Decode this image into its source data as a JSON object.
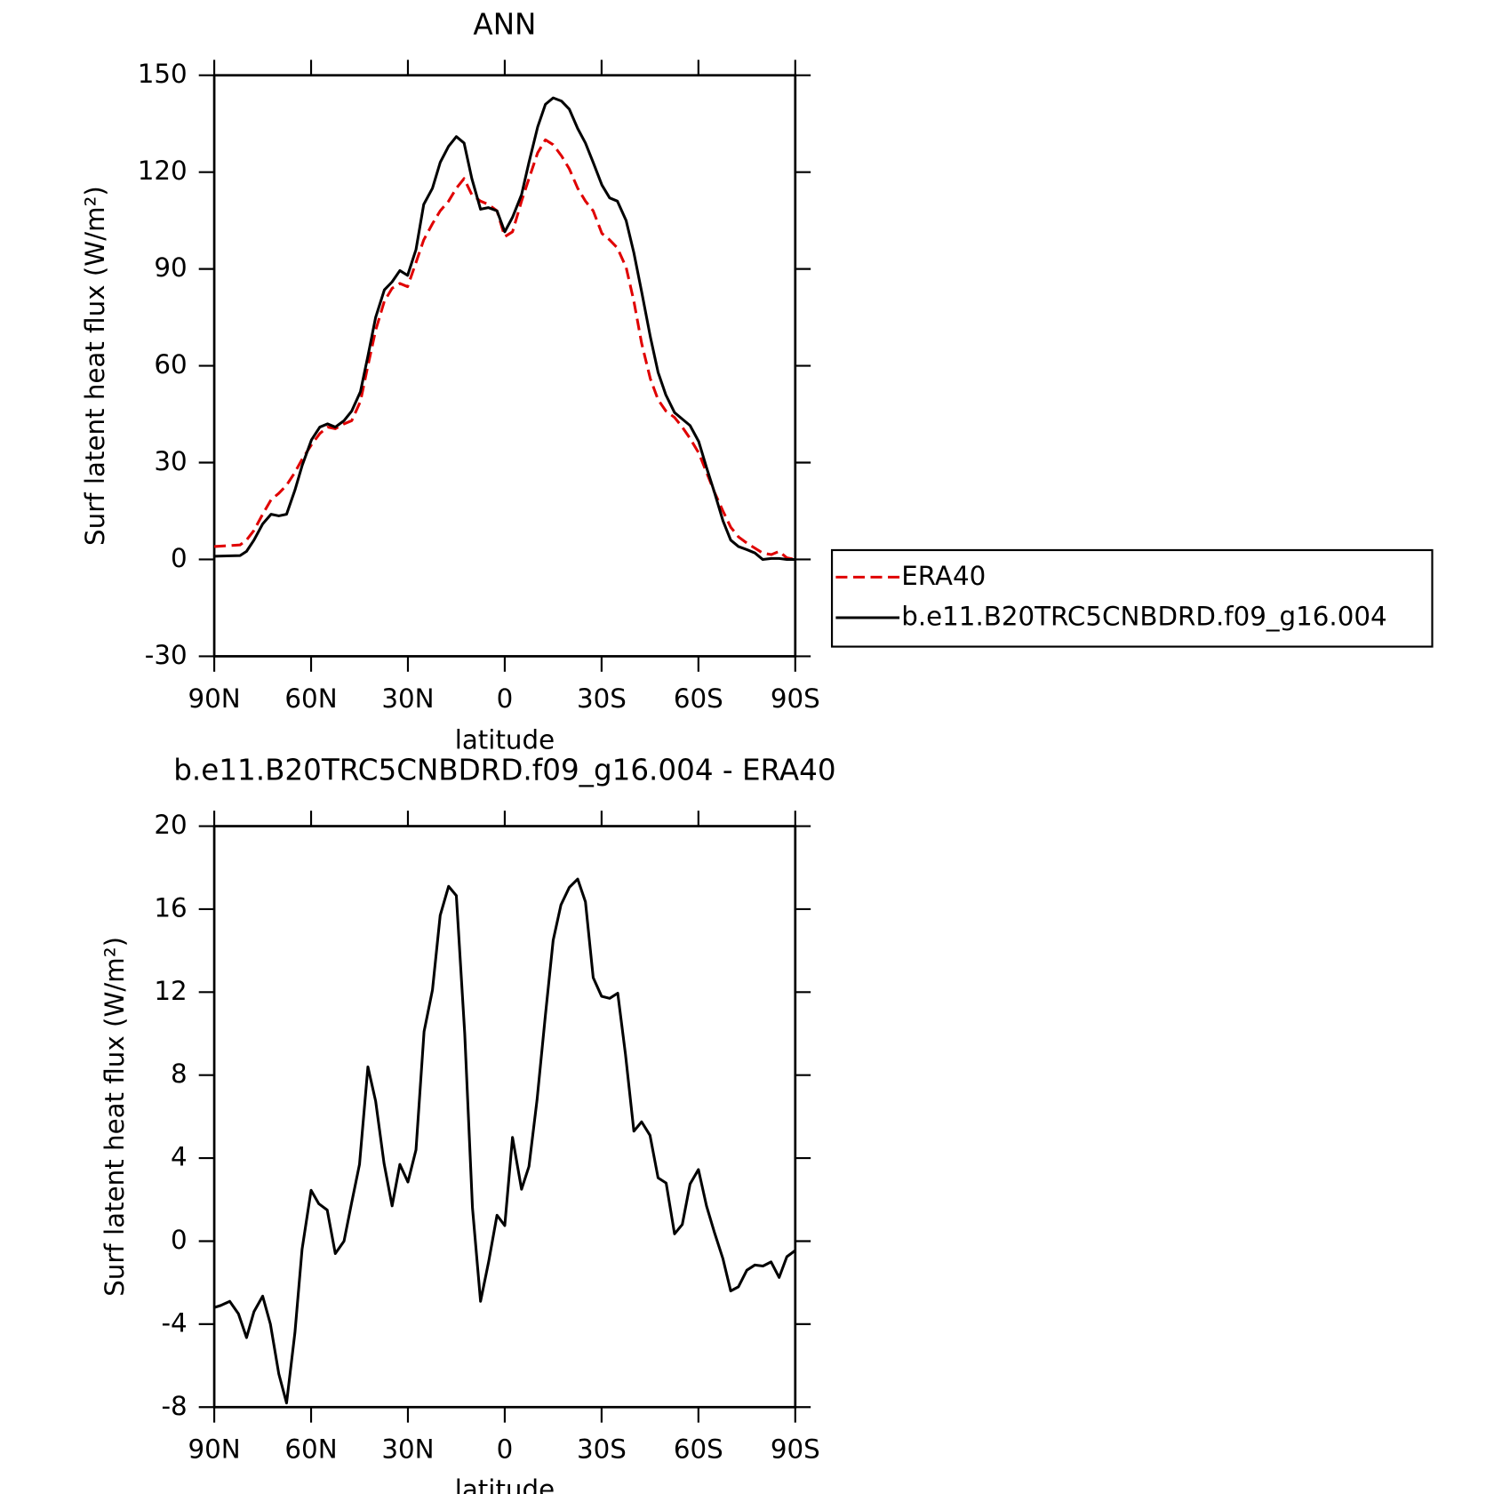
{
  "chart_data": [
    {
      "type": "line",
      "title": "ANN",
      "xlabel": "latitude",
      "ylabel": "Surf latent heat flux (W/m²)",
      "x": [
        90,
        82,
        80,
        77.7,
        75,
        72.4,
        70,
        67.6,
        65,
        62.8,
        59.9,
        57.3,
        54.9,
        52.5,
        49.8,
        47.4,
        44.7,
        42.4,
        40,
        37.3,
        34.9,
        32.5,
        30.1,
        27.5,
        25.1,
        22.4,
        20,
        17.4,
        15,
        12.6,
        10.2,
        7.5,
        5.1,
        2.4,
        0,
        -2.4,
        -5.2,
        -7.5,
        -10.2,
        -12.6,
        -15,
        -17.6,
        -20,
        -22.6,
        -25,
        -27.4,
        -30.1,
        -32.5,
        -34.9,
        -37.6,
        -40,
        -42.4,
        -45.1,
        -47.5,
        -49.9,
        -52.6,
        -55,
        -57.4,
        -60.1,
        -62.5,
        -64.9,
        -67.6,
        -70,
        -72.4,
        -75.1,
        -77.5,
        -79.9,
        -82.6,
        -85,
        -87.4,
        -90
      ],
      "series": [
        {
          "name": "ERA40",
          "color": "#e00000",
          "dash": true,
          "values": [
            4,
            4.5,
            6,
            9,
            14,
            18.5,
            20.5,
            23,
            27,
            31,
            35.5,
            39,
            41,
            40.5,
            42,
            43,
            49,
            60,
            71,
            80,
            84,
            85.5,
            84.5,
            92,
            99,
            104,
            108,
            111,
            115,
            118,
            113,
            111,
            110,
            108,
            100,
            101.5,
            111,
            118,
            126,
            130,
            128.5,
            125,
            121,
            115,
            111,
            108,
            101,
            99,
            96.5,
            90.5,
            80,
            67,
            56,
            49.5,
            46,
            44,
            41,
            37.5,
            33,
            27,
            21,
            15,
            10,
            7,
            5,
            3.5,
            2,
            1.5,
            2.5,
            0.5,
            0
          ]
        },
        {
          "name": "b.e11.B20TRC5CNBDRD.f09_g16.004",
          "color": "#000000",
          "dash": false,
          "values": [
            1,
            1.2,
            2.5,
            6,
            11,
            14,
            13.5,
            14,
            21.5,
            29,
            37,
            41,
            42,
            41,
            43,
            46,
            52,
            63,
            75,
            83.5,
            86,
            89.5,
            88,
            96,
            110,
            115,
            123,
            128,
            131,
            129,
            118,
            108.5,
            109,
            108,
            101.5,
            106,
            113,
            123,
            134,
            141,
            143,
            142,
            139.5,
            133.5,
            129,
            123,
            116,
            112,
            111,
            105,
            95,
            83,
            69,
            58,
            51,
            45.5,
            43.5,
            41.5,
            36.5,
            28.5,
            21,
            12,
            6,
            4,
            3,
            2,
            0,
            0.3,
            0.3,
            0,
            0
          ]
        }
      ],
      "xlim": [
        90,
        -90
      ],
      "xticks": [
        {
          "value": 90,
          "label": "90N"
        },
        {
          "value": 60,
          "label": "60N"
        },
        {
          "value": 30,
          "label": "30N"
        },
        0,
        {
          "value": -30,
          "label": "30S"
        },
        {
          "value": -60,
          "label": "60S"
        },
        {
          "value": -90,
          "label": "90S"
        }
      ],
      "ylim": [
        -30,
        150
      ],
      "yticks": [
        -30,
        0,
        30,
        60,
        90,
        120,
        150
      ],
      "legend": "right"
    },
    {
      "type": "line",
      "title": "b.e11.B20TRC5CNBDRD.f09_g16.004 - ERA40",
      "xlabel": "latitude",
      "ylabel": "Surf latent heat flux (W/m²)",
      "x": [
        90,
        88,
        85.2,
        82.5,
        80,
        77.7,
        75,
        72.6,
        70,
        67.6,
        65,
        62.8,
        60,
        57.6,
        55,
        52.5,
        49.8,
        47.5,
        45,
        42.4,
        40,
        37.4,
        34.9,
        32.5,
        30,
        27.5,
        25,
        22.4,
        20,
        17.4,
        15,
        12.4,
        10,
        7.5,
        5,
        2.4,
        0,
        -2.4,
        -5.2,
        -7.5,
        -10,
        -12.6,
        -15,
        -17.4,
        -20,
        -22.6,
        -25,
        -27.4,
        -30,
        -32.5,
        -35,
        -37.4,
        -40,
        -42.4,
        -45,
        -47.5,
        -50,
        -52.6,
        -55,
        -57.4,
        -60,
        -62.5,
        -64.9,
        -67.6,
        -70,
        -72.4,
        -75,
        -77.5,
        -80,
        -82.5,
        -85,
        -87.4,
        -90
      ],
      "series": [
        {
          "name": "b.e11.B20TRC5CNBDRD.f09_g16.004 - ERA40",
          "color": "#000000",
          "dash": false,
          "values": [
            -3.2,
            -3.1,
            -2.9,
            -3.5,
            -4.65,
            -3.4,
            -2.65,
            -4,
            -6.4,
            -7.8,
            -4.4,
            -0.4,
            2.45,
            1.8,
            1.5,
            -0.6,
            0,
            1.8,
            3.7,
            8.4,
            6.75,
            3.75,
            1.7,
            3.7,
            2.85,
            4.4,
            10.1,
            12.1,
            15.7,
            17.1,
            16.65,
            10,
            1.6,
            -2.9,
            -1,
            1.25,
            0.75,
            5,
            2.5,
            3.6,
            6.8,
            10.9,
            14.5,
            16.2,
            17.05,
            17.45,
            16.35,
            12.7,
            11.8,
            11.7,
            11.95,
            9,
            5.3,
            5.75,
            5.1,
            3.05,
            2.8,
            0.35,
            0.8,
            2.75,
            3.45,
            1.7,
            0.45,
            -0.85,
            -2.4,
            -2.2,
            -1.4,
            -1.15,
            -1.2,
            -1,
            -1.75,
            -0.75,
            -0.45
          ]
        }
      ],
      "xlim": [
        90,
        -90
      ],
      "xticks": [
        {
          "value": 90,
          "label": "90N"
        },
        {
          "value": 60,
          "label": "60N"
        },
        {
          "value": 30,
          "label": "30N"
        },
        0,
        {
          "value": -30,
          "label": "30S"
        },
        {
          "value": -60,
          "label": "60S"
        },
        {
          "value": -90,
          "label": "90S"
        }
      ],
      "ylim": [
        -8,
        20
      ],
      "yticks": [
        -8,
        -4,
        0,
        4,
        8,
        12,
        16,
        20
      ]
    }
  ]
}
